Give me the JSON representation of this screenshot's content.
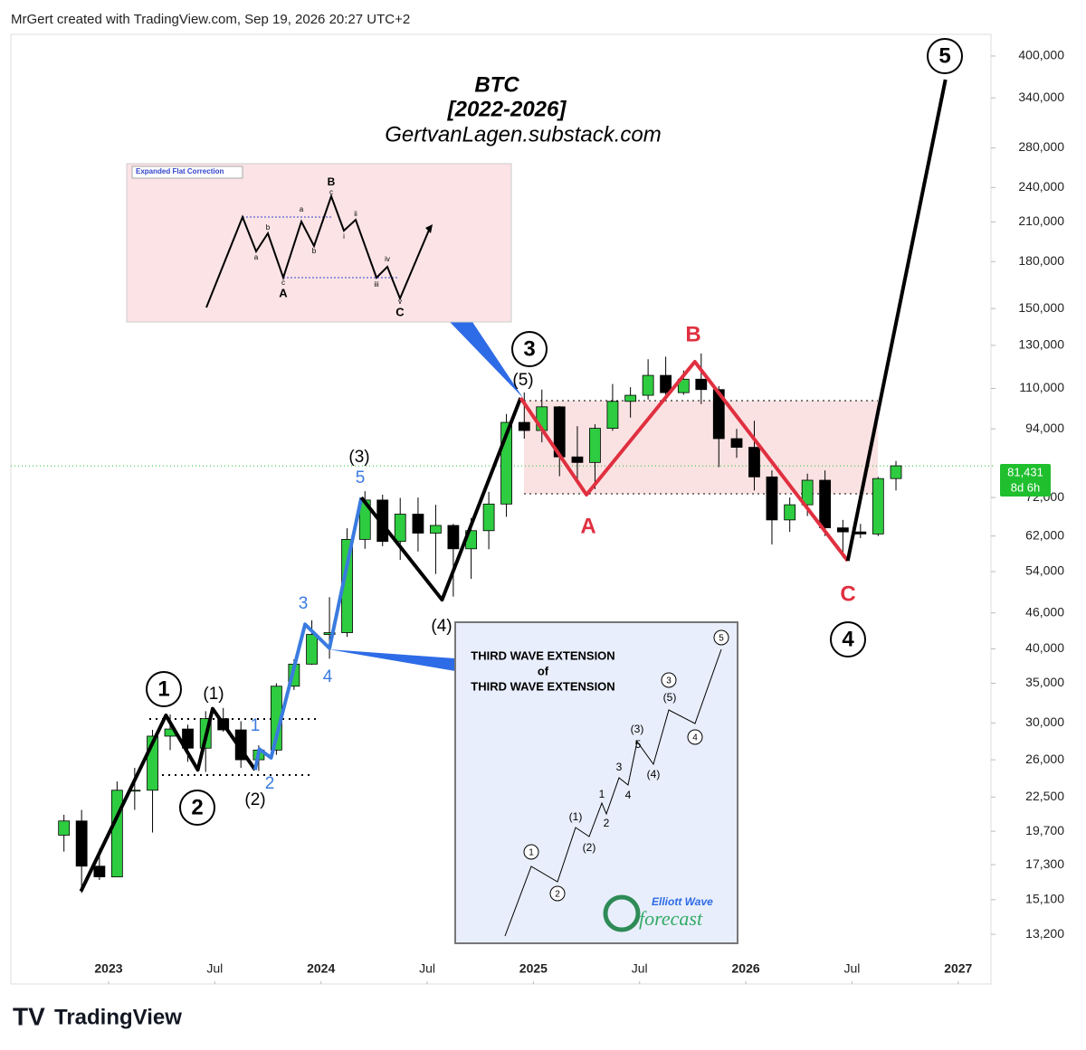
{
  "header": "MrGert created with TradingView.com, Sep 19, 2026 20:27 UTC+2",
  "footer_logo": "TradingView",
  "chart_data": {
    "type": "candlestick",
    "title_lines": [
      "BTC",
      "[2022-2026]",
      "GertvanLagen.substack.com"
    ],
    "log_scale": true,
    "up_color": "#2ecc40",
    "down_color": "#000000",
    "x": [
      2022.79,
      2022.873,
      2022.957,
      2023.04,
      2023.123,
      2023.207,
      2023.29,
      2023.373,
      2023.457,
      2023.54,
      2023.623,
      2023.707,
      2023.79,
      2023.873,
      2023.957,
      2024.04,
      2024.123,
      2024.207,
      2024.29,
      2024.373,
      2024.457,
      2024.54,
      2024.623,
      2024.707,
      2024.79,
      2024.873,
      2024.957,
      2025.04,
      2025.123,
      2025.207,
      2025.29,
      2025.373,
      2025.457,
      2025.54,
      2025.623,
      2025.707,
      2025.79,
      2025.873,
      2025.957,
      2026.04,
      2026.123,
      2026.207,
      2026.29,
      2026.373,
      2026.457,
      2026.54,
      2026.623,
      2026.707
    ],
    "open": [
      19400,
      20500,
      17200,
      16500,
      23100,
      23100,
      28500,
      29300,
      27200,
      30500,
      29200,
      26000,
      27000,
      34600,
      37700,
      42300,
      42600,
      61200,
      71300,
      60700,
      67500,
      62700,
      64600,
      59000,
      63300,
      70200,
      96400,
      93400,
      102400,
      84300,
      82500,
      94200,
      104600,
      107100,
      115700,
      108200,
      114000,
      109500,
      90500,
      87500,
      78000,
      66000,
      70000,
      77000,
      64000,
      63000,
      62500,
      77500
    ],
    "high": [
      21000,
      21400,
      18400,
      23900,
      25200,
      29200,
      31000,
      29800,
      31400,
      31800,
      30200,
      27500,
      35000,
      38400,
      44700,
      48900,
      63900,
      73800,
      72800,
      71900,
      72000,
      70000,
      65000,
      66500,
      73600,
      99600,
      108300,
      109500,
      102700,
      95000,
      95700,
      111900,
      110500,
      123200,
      124400,
      117900,
      126000,
      111000,
      94000,
      97000,
      80000,
      72000,
      79000,
      80000,
      66000,
      65000,
      78000,
      83000
    ],
    "low": [
      18200,
      15500,
      16300,
      16500,
      21400,
      19600,
      27000,
      25800,
      24800,
      29000,
      25200,
      24900,
      26500,
      34100,
      37600,
      38500,
      41900,
      59000,
      59600,
      56500,
      58400,
      53500,
      49000,
      52500,
      58900,
      66800,
      90500,
      89200,
      78200,
      76500,
      74400,
      93300,
      98200,
      105300,
      107300,
      107300,
      103500,
      81000,
      84000,
      74000,
      60000,
      63000,
      67000,
      62000,
      57000,
      61500,
      62000,
      74000
    ],
    "close": [
      20500,
      17200,
      16500,
      23100,
      23100,
      28500,
      29300,
      27200,
      30500,
      29200,
      26000,
      27000,
      34600,
      37700,
      42300,
      42600,
      61200,
      71300,
      60700,
      67500,
      62700,
      64600,
      59000,
      63300,
      70200,
      96400,
      93400,
      102400,
      84300,
      82500,
      94200,
      104600,
      107100,
      115700,
      108200,
      114000,
      109500,
      90500,
      87500,
      78000,
      66000,
      70000,
      77000,
      64000,
      63000,
      62500,
      77500,
      81431
    ],
    "xlim": [
      2022.54,
      2027.15
    ],
    "ylim": [
      11000,
      480000
    ],
    "xticks": [
      2023,
      {
        "value": 2023.5,
        "label": "Jul"
      },
      2024,
      {
        "value": 2024.5,
        "label": "Jul"
      },
      2025,
      {
        "value": 2025.5,
        "label": "Jul"
      },
      2026,
      {
        "value": 2026.5,
        "label": "Jul"
      },
      2027
    ],
    "yticks": [
      {
        "value": 400000,
        "label": "400,000"
      },
      {
        "value": 340000,
        "label": "340,000"
      },
      {
        "value": 280000,
        "label": "280,000"
      },
      {
        "value": 240000,
        "label": "240,000"
      },
      {
        "value": 210000,
        "label": "210,000"
      },
      {
        "value": 180000,
        "label": "180,000"
      },
      {
        "value": 150000,
        "label": "150,000"
      },
      {
        "value": 130000,
        "label": "130,000"
      },
      {
        "value": 110000,
        "label": "110,000"
      },
      {
        "value": 94000,
        "label": "94,000"
      },
      {
        "value": 72000,
        "label": "72,000"
      },
      {
        "value": 62000,
        "label": "62,000"
      },
      {
        "value": 54000,
        "label": "54,000"
      },
      {
        "value": 46000,
        "label": "46,000"
      },
      {
        "value": 40000,
        "label": "40,000"
      },
      {
        "value": 35000,
        "label": "35,000"
      },
      {
        "value": 30000,
        "label": "30,000"
      },
      {
        "value": 26000,
        "label": "26,000"
      },
      {
        "value": 22500,
        "label": "22,500"
      },
      {
        "value": 19700,
        "label": "19,700"
      },
      {
        "value": 17300,
        "label": "17,300"
      },
      {
        "value": 15100,
        "label": "15,100"
      },
      {
        "value": 13200,
        "label": "13,200"
      }
    ],
    "last_price": {
      "value": 81431,
      "label": "81,431"
    },
    "countdown": "8d 6h",
    "wave_lines": [
      {
        "color": "#000000",
        "x": [
          2022.87,
          2023.27,
          2023.42,
          2023.49,
          2023.69
        ],
        "values": [
          15600,
          30900,
          25000,
          31700,
          25000
        ]
      },
      {
        "color": "#3a7be0",
        "x": [
          2023.69,
          2023.71,
          2023.765,
          2023.925,
          2024.04,
          2024.19
        ],
        "values": [
          25000,
          27100,
          26200,
          44000,
          40100,
          72000
        ]
      },
      {
        "color": "#000000",
        "x": [
          2024.19,
          2024.57,
          2024.94
        ],
        "values": [
          72000,
          48400,
          106000
        ]
      },
      {
        "color": "#e03040",
        "x": [
          2024.94,
          2025.25,
          2025.76,
          2026.48
        ],
        "values": [
          106000,
          72800,
          122000,
          56300
        ]
      },
      {
        "color": "#000000",
        "x": [
          2026.48,
          2026.94
        ],
        "values": [
          56300,
          365000
        ]
      }
    ],
    "wave_labels": [
      "1",
      "(1)",
      "2",
      "(2)",
      "1",
      "2",
      "3",
      "4",
      "5",
      "(3)",
      "(4)",
      "3",
      "(5)",
      "4",
      "5",
      "A",
      "B",
      "C"
    ]
  },
  "flat_inset": {
    "title": "Expanded Flat Correction",
    "labels": [
      "B",
      "c",
      "a",
      "b",
      "c",
      "A",
      "a",
      "b",
      "i",
      "ii",
      "iii",
      "iv",
      "v",
      "C"
    ]
  },
  "extension_inset": {
    "title_lines": [
      "THIRD WAVE EXTENSION",
      "of",
      "THIRD WAVE EXTENSION"
    ],
    "labels": [
      "1",
      "2",
      "(1)",
      "(2)",
      "1",
      "2",
      "3",
      "4",
      "(3)",
      "5",
      "(4)",
      "3",
      "(5)",
      "4",
      "5"
    ],
    "logo": [
      "Elliott Wave",
      "forecast"
    ]
  }
}
